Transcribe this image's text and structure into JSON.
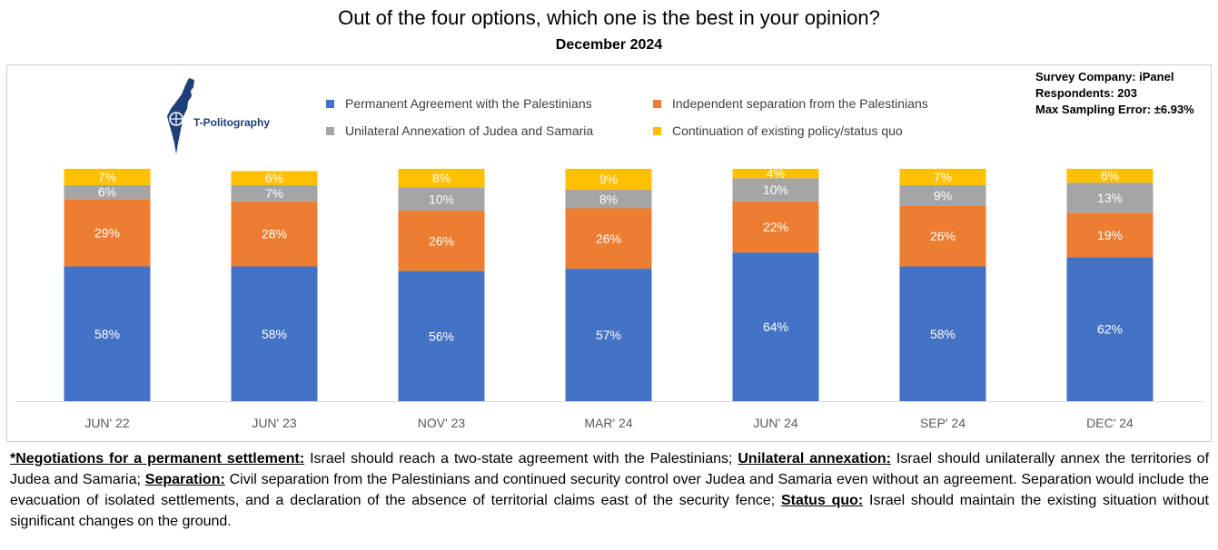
{
  "title": "Out of the four options, which one is the best in your opinion?",
  "subtitle": "December 2024",
  "logo_text": "T-Politography",
  "info": {
    "company": "Survey Company: iPanel",
    "respondents": "Respondents: 203",
    "error": "Max Sampling Error: ±6.93%"
  },
  "legend": [
    {
      "label": "Permanent Agreement with the Palestinians",
      "color": "#4472c4"
    },
    {
      "label": "Independent separation from the Palestinians",
      "color": "#ed7d31"
    },
    {
      "label": "Unilateral Annexation of Judea and Samaria",
      "color": "#a5a5a5"
    },
    {
      "label": "Continuation of existing policy/status quo",
      "color": "#ffc000"
    }
  ],
  "chart_data": {
    "type": "bar",
    "stacked": true,
    "categories": [
      "JUN' 22",
      "JUN' 23",
      "NOV' 23",
      "MAR' 24",
      "JUN' 24",
      "SEP' 24",
      "DEC' 24"
    ],
    "series": [
      {
        "name": "Permanent Agreement with the Palestinians",
        "color": "#4472c4",
        "values": [
          58,
          58,
          56,
          57,
          64,
          58,
          62
        ]
      },
      {
        "name": "Independent separation from the Palestinians",
        "color": "#ed7d31",
        "values": [
          29,
          28,
          26,
          26,
          22,
          26,
          19
        ]
      },
      {
        "name": "Unilateral Annexation of Judea and Samaria",
        "color": "#a5a5a5",
        "values": [
          6,
          7,
          10,
          8,
          10,
          9,
          13
        ]
      },
      {
        "name": "Continuation of existing policy/status quo",
        "color": "#ffc000",
        "values": [
          7,
          6,
          8,
          9,
          4,
          7,
          6
        ]
      }
    ],
    "value_suffix": "%",
    "ylim": [
      0,
      100
    ],
    "grid": false,
    "legend_position": "top"
  },
  "footnote": {
    "t1": "*Negotiations for a permanent settlement:",
    "t2": " Israel should reach a two-state agreement with the Palestinians; ",
    "t3": "Unilateral annexation:",
    "t4": " Israel should unilaterally annex the territories of Judea and Samaria; ",
    "t5": "Separation:",
    "t6": " Civil separation from the Palestinians and continued security control over Judea and Samaria even without an agreement. Separation would include the evacuation of isolated settlements, and a declaration of the absence of territorial claims east of the security fence; ",
    "t7": "Status quo:",
    "t8": " Israel should maintain the existing situation without significant changes on the ground."
  }
}
